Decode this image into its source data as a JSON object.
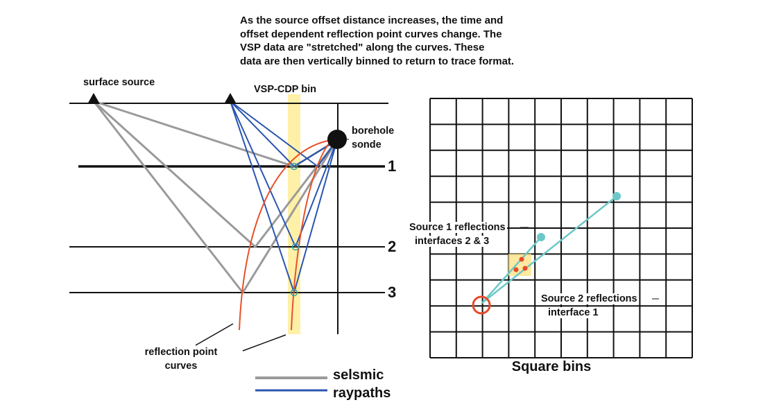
{
  "caption_lines": [
    "As the source offset distance increases, the time and",
    "offset dependent reflection point curves change. The",
    "VSP data are  \"stretched\"  along the curves.  These",
    "data are then vertically binned to return to trace format."
  ],
  "labels": {
    "surface_source": "surface source",
    "vsp_cdp_bin": "VSP-CDP bin",
    "borehole_sonde_line1": "borehole",
    "borehole_sonde_line2": "sonde",
    "interface_1": "1",
    "interface_2": "2",
    "interface_3": "3",
    "reflection_point_curves_line1": "reflection point",
    "reflection_point_curves_line2": "curves",
    "legend_seismic": "selsmic",
    "legend_raypaths": "raypaths",
    "source1_line1": "Source 1 reflections",
    "source1_line2": "interfaces 2 & 3",
    "source2_line1": "Source 2 reflections",
    "source2_line2": "interface 1",
    "square_bins_title": "Square bins"
  },
  "colors": {
    "seismic_gray": "#9a9a9a",
    "raypath_blue": "#2a55b0",
    "curve_red": "#e8502a",
    "bin_highlight": "#fff0a8",
    "cyan": "#6cc8c8",
    "reflection_dot": "#e84a2a"
  }
}
